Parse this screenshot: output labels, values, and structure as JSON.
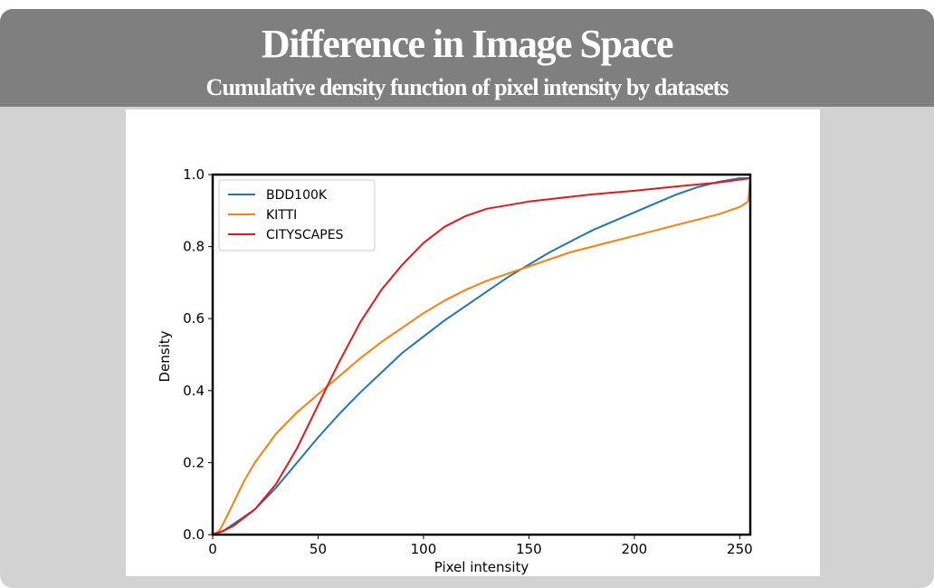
{
  "header": {
    "title": "Difference in Image Space",
    "subtitle": "Cumulative density function of pixel intensity by datasets"
  },
  "chart_data": {
    "type": "line",
    "title": "",
    "xlabel": "Pixel intensity",
    "ylabel": "Density",
    "xlim": [
      0,
      255
    ],
    "ylim": [
      0,
      1.0
    ],
    "x_ticks": [
      "0",
      "50",
      "100",
      "150",
      "200",
      "250"
    ],
    "y_ticks": [
      "0.0",
      "0.2",
      "0.4",
      "0.6",
      "0.8",
      "1.0"
    ],
    "grid": false,
    "legend_position": "top-left",
    "series": [
      {
        "name": "BDD100K",
        "color": "#1f77b4",
        "x": [
          0,
          5,
          10,
          20,
          30,
          40,
          50,
          60,
          70,
          80,
          90,
          100,
          110,
          120,
          130,
          140,
          150,
          160,
          170,
          180,
          190,
          200,
          210,
          220,
          230,
          240,
          250,
          255
        ],
        "y": [
          0.0,
          0.01,
          0.03,
          0.07,
          0.13,
          0.2,
          0.27,
          0.335,
          0.395,
          0.45,
          0.505,
          0.55,
          0.595,
          0.635,
          0.675,
          0.715,
          0.75,
          0.785,
          0.815,
          0.845,
          0.87,
          0.895,
          0.92,
          0.945,
          0.965,
          0.98,
          0.99,
          0.99
        ]
      },
      {
        "name": "KITTI",
        "color": "#ff7f0e",
        "x": [
          0,
          3,
          5,
          10,
          15,
          20,
          30,
          40,
          50,
          60,
          70,
          80,
          90,
          100,
          110,
          120,
          130,
          140,
          150,
          160,
          170,
          180,
          190,
          200,
          210,
          220,
          230,
          240,
          250,
          254,
          255
        ],
        "y": [
          0.0,
          0.01,
          0.03,
          0.09,
          0.15,
          0.2,
          0.28,
          0.34,
          0.39,
          0.44,
          0.49,
          0.535,
          0.575,
          0.615,
          0.65,
          0.68,
          0.705,
          0.725,
          0.745,
          0.765,
          0.785,
          0.8,
          0.815,
          0.83,
          0.845,
          0.86,
          0.875,
          0.89,
          0.91,
          0.925,
          0.99
        ]
      },
      {
        "name": "CITYSCAPES",
        "color": "#e31a1c",
        "x": [
          0,
          5,
          10,
          20,
          30,
          40,
          50,
          55,
          60,
          70,
          80,
          90,
          100,
          110,
          115,
          120,
          130,
          140,
          150,
          160,
          180,
          200,
          220,
          240,
          255
        ],
        "y": [
          0.0,
          0.01,
          0.025,
          0.07,
          0.14,
          0.24,
          0.36,
          0.42,
          0.48,
          0.59,
          0.68,
          0.75,
          0.81,
          0.855,
          0.87,
          0.885,
          0.905,
          0.915,
          0.925,
          0.932,
          0.945,
          0.955,
          0.967,
          0.978,
          0.99
        ]
      }
    ]
  }
}
